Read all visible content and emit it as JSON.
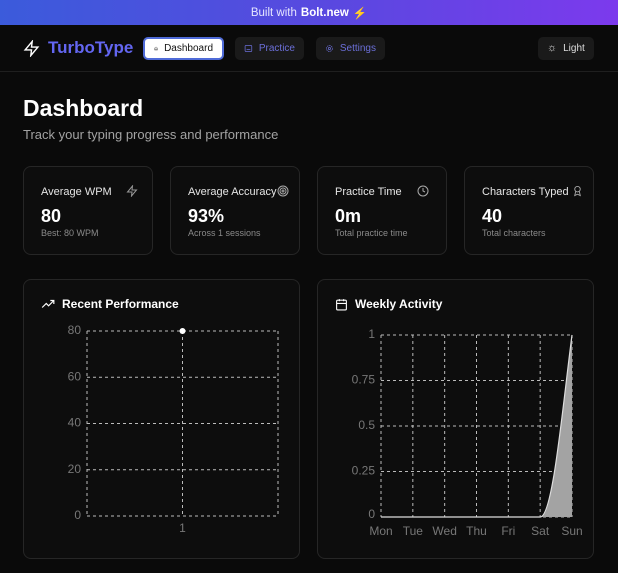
{
  "banner": {
    "prefix": "Built with",
    "brand": "Bolt.new",
    "icon": "bolt-icon"
  },
  "nav": {
    "logo": "TurboType",
    "items": [
      {
        "label": "Dashboard",
        "icon": "home-icon",
        "active": true
      },
      {
        "label": "Practice",
        "icon": "keyboard-icon"
      },
      {
        "label": "Settings",
        "icon": "gear-icon"
      }
    ],
    "theme_toggle": "Light"
  },
  "page": {
    "title": "Dashboard",
    "subtitle": "Track your typing progress and performance"
  },
  "stats": [
    {
      "title": "Average WPM",
      "value": "80",
      "detail": "Best: 80 WPM",
      "icon": "bolt-icon"
    },
    {
      "title": "Average Accuracy",
      "value": "93%",
      "detail": "Across 1 sessions",
      "icon": "target-icon"
    },
    {
      "title": "Practice Time",
      "value": "0m",
      "detail": "Total practice time",
      "icon": "clock-icon"
    },
    {
      "title": "Characters Typed",
      "value": "40",
      "detail": "Total characters",
      "icon": "award-icon"
    }
  ],
  "panels": {
    "performance": "Recent Performance",
    "weekly": "Weekly Activity"
  },
  "colors": {
    "accent": "#6366f1",
    "banner_start": "#3b5bdb",
    "banner_end": "#7c3aed"
  },
  "chart_data": [
    {
      "type": "line",
      "title": "Recent Performance",
      "x": [
        "1"
      ],
      "values": [
        80
      ],
      "ylim": [
        0,
        80
      ],
      "yticks": [
        "0",
        "20",
        "40",
        "60",
        "80"
      ],
      "grid": true
    },
    {
      "type": "area",
      "title": "Weekly Activity",
      "categories": [
        "Mon",
        "Tue",
        "Wed",
        "Thu",
        "Fri",
        "Sat",
        "Sun"
      ],
      "values": [
        0,
        0,
        0,
        0,
        0,
        0,
        1
      ],
      "ylim": [
        0,
        1
      ],
      "yticks": [
        "0",
        "0.25",
        "0.5",
        "0.75",
        "1"
      ],
      "grid": true
    }
  ]
}
